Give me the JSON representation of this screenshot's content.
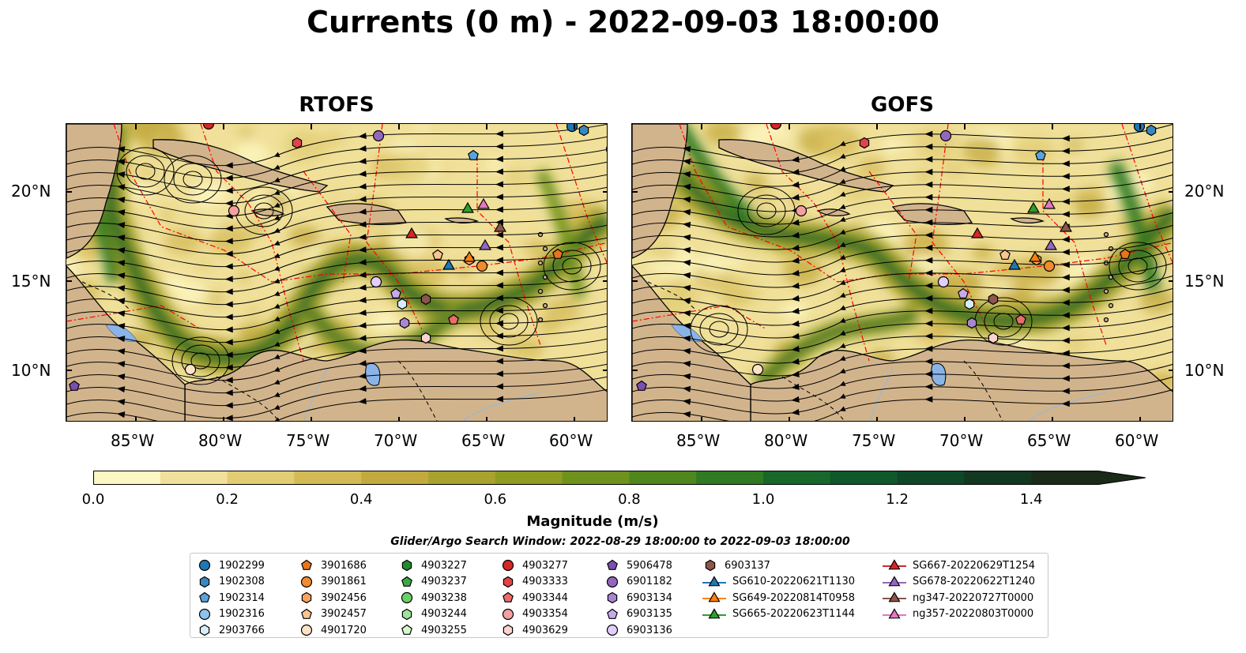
{
  "title": "Currents (0 m) - 2022-09-03 18:00:00",
  "panels": [
    {
      "title": "RTOFS"
    },
    {
      "title": "GOFS"
    }
  ],
  "lat_ticks": [
    "20°N",
    "15°N",
    "10°N"
  ],
  "lon_ticks": [
    "85°W",
    "80°W",
    "75°W",
    "70°W",
    "65°W",
    "60°W"
  ],
  "colorbar": {
    "label": "Magnitude (m/s)",
    "ticks": [
      "0.0",
      "0.2",
      "0.4",
      "0.6",
      "0.8",
      "1.0",
      "1.2",
      "1.4"
    ],
    "min": 0.0,
    "max": 1.5,
    "extend": "max",
    "colors": [
      "#fdf7c3",
      "#f0e099",
      "#e2cc74",
      "#d4ba55",
      "#c3aa3f",
      "#aaa22e",
      "#8f9c22",
      "#6f921d",
      "#4f871c",
      "#2f7a22",
      "#17682b",
      "#0f582c",
      "#0e4827",
      "#123821",
      "#1a2b18"
    ]
  },
  "search_window": "Glider/Argo Search Window: 2022-08-29 18:00:00 to 2022-09-03 18:00:00",
  "legend": {
    "columns": [
      [
        {
          "label": "1902299",
          "marker": "circle",
          "color": "#1f77b4"
        },
        {
          "label": "1902308",
          "marker": "hexagon",
          "color": "#3a86c0"
        },
        {
          "label": "1902314",
          "marker": "pentagon",
          "color": "#5aa2dc"
        },
        {
          "label": "1902316",
          "marker": "circle",
          "color": "#8cc3ee"
        },
        {
          "label": "2903766",
          "marker": "hexagon",
          "color": "#d6eefc"
        }
      ],
      [
        {
          "label": "3901686",
          "marker": "pentagon",
          "color": "#e8741c"
        },
        {
          "label": "3901861",
          "marker": "circle",
          "color": "#f28a2e"
        },
        {
          "label": "3902456",
          "marker": "hexagon",
          "color": "#f6a45a"
        },
        {
          "label": "3902457",
          "marker": "pentagon",
          "color": "#f9c48e"
        },
        {
          "label": "4901720",
          "marker": "circle",
          "color": "#fde3c6"
        }
      ],
      [
        {
          "label": "4903227",
          "marker": "hexagon",
          "color": "#238b2e"
        },
        {
          "label": "4903237",
          "marker": "pentagon",
          "color": "#3ca845"
        },
        {
          "label": "4903238",
          "marker": "circle",
          "color": "#6bcf68"
        },
        {
          "label": "4903244",
          "marker": "hexagon",
          "color": "#9ee49a"
        },
        {
          "label": "4903255",
          "marker": "pentagon",
          "color": "#d6f7c9"
        }
      ],
      [
        {
          "label": "4903277",
          "marker": "circle",
          "color": "#d62728"
        },
        {
          "label": "4903333",
          "marker": "hexagon",
          "color": "#e0444a"
        },
        {
          "label": "4903344",
          "marker": "pentagon",
          "color": "#ec6b6b"
        },
        {
          "label": "4903354",
          "marker": "circle",
          "color": "#f4a0a0"
        },
        {
          "label": "4903629",
          "marker": "hexagon",
          "color": "#fbd3d0"
        }
      ],
      [
        {
          "label": "5906478",
          "marker": "pentagon",
          "color": "#7b4fb0"
        },
        {
          "label": "6901182",
          "marker": "circle",
          "color": "#9467bd"
        },
        {
          "label": "6903134",
          "marker": "hexagon",
          "color": "#aa86d2"
        },
        {
          "label": "6903135",
          "marker": "pentagon",
          "color": "#c8aaec"
        },
        {
          "label": "6903136",
          "marker": "circle",
          "color": "#e3cdfb"
        }
      ],
      [
        {
          "label": "6903137",
          "marker": "hexagon",
          "color": "#8c564b"
        },
        {
          "label": "SG610-20220621T1130",
          "marker": "triangle-line",
          "color": "#1f77b4"
        },
        {
          "label": "SG649-20220814T0958",
          "marker": "triangle-line",
          "color": "#ff7f0e"
        },
        {
          "label": "SG665-20220623T1144",
          "marker": "triangle-line",
          "color": "#2ca02c"
        }
      ],
      [
        {
          "label": "SG667-20220629T1254",
          "marker": "triangle-line",
          "color": "#d62728"
        },
        {
          "label": "SG678-20220622T1240",
          "marker": "triangle-line",
          "color": "#9467bd"
        },
        {
          "label": "ng347-20220727T0000",
          "marker": "triangle-line",
          "color": "#8c564b"
        },
        {
          "label": "ng357-20220803T0000",
          "marker": "triangle-line",
          "color": "#e377c2"
        }
      ]
    ]
  },
  "colors": {
    "land": "#d2b48c",
    "eez_lines": "#ff0000",
    "lakes": "#8ab4e8",
    "streamlines": "#000000"
  },
  "icons": {
    "colorbar_extend": "triangle-arrow"
  }
}
